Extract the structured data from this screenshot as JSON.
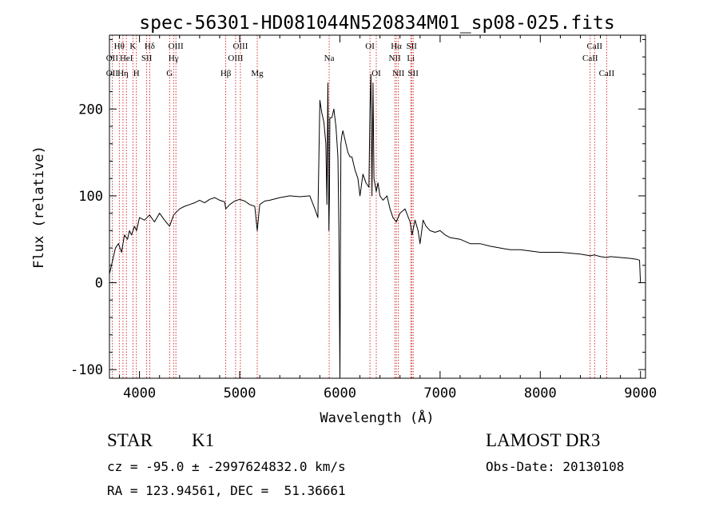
{
  "chart_data": {
    "type": "line",
    "title": "spec-56301-HD081044N520834M01_sp08-025.fits",
    "xlabel": "Wavelength (Å)",
    "ylabel": "Flux (relative)",
    "xlim": [
      3700,
      9050
    ],
    "ylim": [
      -110,
      285
    ],
    "xticks": [
      4000,
      5000,
      6000,
      7000,
      8000,
      9000
    ],
    "yticks": [
      -100,
      0,
      100,
      200
    ],
    "grid": false,
    "line_color": "#000000",
    "marker_color": "#cc0000",
    "series": [
      {
        "x": [
          3700,
          3730,
          3760,
          3790,
          3820,
          3850,
          3880,
          3900,
          3920,
          3950,
          3970,
          4000,
          4050,
          4100,
          4150,
          4200,
          4250,
          4300,
          4340,
          4400,
          4450,
          4500,
          4550,
          4600,
          4650,
          4700,
          4750,
          4800,
          4850,
          4861,
          4900,
          4950,
          5000,
          5050,
          5100,
          5150,
          5175,
          5200,
          5250,
          5300,
          5400,
          5500,
          5600,
          5700,
          5750,
          5780,
          5800,
          5820,
          5840,
          5860,
          5870,
          5880,
          5890,
          5896,
          5900,
          5920,
          5940,
          5960,
          5980,
          5990,
          6000,
          6010,
          6020,
          6030,
          6040,
          6060,
          6080,
          6100,
          6120,
          6150,
          6180,
          6200,
          6230,
          6260,
          6290,
          6300,
          6310,
          6320,
          6330,
          6340,
          6363,
          6380,
          6400,
          6430,
          6470,
          6500,
          6530,
          6563,
          6600,
          6650,
          6700,
          6720,
          6750,
          6780,
          6800,
          6830,
          6860,
          6900,
          6950,
          7000,
          7050,
          7100,
          7200,
          7300,
          7400,
          7500,
          7600,
          7700,
          7800,
          8000,
          8200,
          8400,
          8500,
          8540,
          8600,
          8662,
          8700,
          8800,
          8900,
          8960,
          8990,
          9000
        ],
        "y": [
          10,
          25,
          40,
          45,
          35,
          55,
          50,
          60,
          55,
          65,
          60,
          75,
          72,
          78,
          70,
          80,
          72,
          65,
          78,
          85,
          88,
          90,
          92,
          95,
          92,
          96,
          98,
          95,
          93,
          85,
          90,
          94,
          96,
          94,
          90,
          88,
          60,
          90,
          94,
          95,
          98,
          100,
          99,
          100,
          85,
          75,
          210,
          195,
          185,
          160,
          90,
          230,
          60,
          100,
          190,
          190,
          200,
          180,
          145,
          60,
          -110,
          160,
          170,
          175,
          170,
          160,
          150,
          145,
          145,
          130,
          120,
          100,
          125,
          115,
          110,
          200,
          240,
          100,
          230,
          120,
          105,
          115,
          100,
          95,
          100,
          85,
          75,
          70,
          80,
          85,
          70,
          55,
          72,
          60,
          45,
          72,
          65,
          60,
          58,
          60,
          55,
          52,
          50,
          45,
          45,
          42,
          40,
          38,
          38,
          35,
          35,
          33,
          31,
          32,
          30,
          29,
          30,
          29,
          28,
          27,
          26,
          0
        ]
      }
    ],
    "line_markers": [
      {
        "wl": 3727,
        "label": "OII",
        "row": 2
      },
      {
        "wl": 3727,
        "label": "OII",
        "row": 3
      },
      {
        "wl": 3798,
        "label": "Hθ",
        "row": 1
      },
      {
        "wl": 3835,
        "label": "Hη",
        "row": 3
      },
      {
        "wl": 3869,
        "label": "HeI",
        "row": 2
      },
      {
        "wl": 3934,
        "label": "K",
        "row": 1
      },
      {
        "wl": 3969,
        "label": "H",
        "row": 3
      },
      {
        "wl": 4072,
        "label": "SII",
        "row": 2
      },
      {
        "wl": 4102,
        "label": "Hδ",
        "row": 1
      },
      {
        "wl": 4300,
        "label": "G",
        "row": 3
      },
      {
        "wl": 4340,
        "label": "Hγ",
        "row": 2
      },
      {
        "wl": 4363,
        "label": "OIII",
        "row": 1
      },
      {
        "wl": 4861,
        "label": "Hβ",
        "row": 3
      },
      {
        "wl": 4959,
        "label": "OIII",
        "row": 2
      },
      {
        "wl": 5007,
        "label": "OIII",
        "row": 1
      },
      {
        "wl": 5175,
        "label": "Mg",
        "row": 3
      },
      {
        "wl": 5893,
        "label": "Na",
        "row": 2
      },
      {
        "wl": 6300,
        "label": "OI",
        "row": 1
      },
      {
        "wl": 6363,
        "label": "OI",
        "row": 3
      },
      {
        "wl": 6548,
        "label": "NII",
        "row": 2
      },
      {
        "wl": 6563,
        "label": "Hα",
        "row": 1
      },
      {
        "wl": 6584,
        "label": "NII",
        "row": 3
      },
      {
        "wl": 6708,
        "label": "Li",
        "row": 2
      },
      {
        "wl": 6716,
        "label": "SII",
        "row": 1
      },
      {
        "wl": 6731,
        "label": "SII",
        "row": 3
      },
      {
        "wl": 8498,
        "label": "CaII",
        "row": 2
      },
      {
        "wl": 8542,
        "label": "CaII",
        "row": 1
      },
      {
        "wl": 8662,
        "label": "CaII",
        "row": 3
      }
    ]
  },
  "info": {
    "class_label": "STAR",
    "subclass": "K1",
    "survey": "LAMOST DR3",
    "cz_line": "cz = -95.0 ± -2997624832.0 km/s",
    "obs_date": "Obs-Date: 20130108",
    "coords": "RA = 123.94561, DEC =  51.36661"
  }
}
